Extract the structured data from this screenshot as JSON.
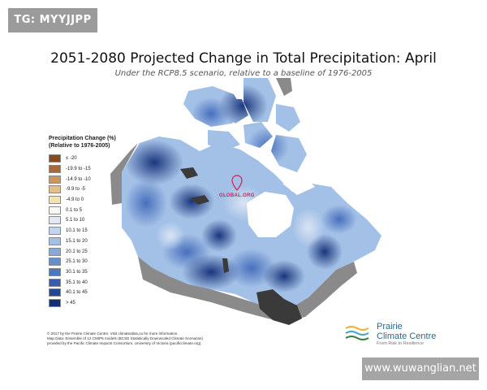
{
  "watermarks": {
    "top_left": "TG: MYYJJPP",
    "bottom_right": "www.wuwanglian.net",
    "map_stamp": "GLOBAL.ORG"
  },
  "map": {
    "title": "2051-2080 Projected Change in Total Precipitation: April",
    "subtitle": "Under the RCP8.5 scenario, relative to a baseline of 1976-2005"
  },
  "legend": {
    "title_line1": "Precipitation Change (%)",
    "title_line2": "(Relative to 1976-2005)",
    "items": [
      {
        "label": "≤ -20",
        "color": "#8a4a1c"
      },
      {
        "label": "-19.9 to -15",
        "color": "#a8693a"
      },
      {
        "label": "-14.9 to -10",
        "color": "#c99660"
      },
      {
        "label": "-9.9 to -5",
        "color": "#e2c185"
      },
      {
        "label": "-4.9 to 0",
        "color": "#f3e2b2"
      },
      {
        "label": "0.1 to 5",
        "color": "#f6f6f3"
      },
      {
        "label": "5.1 to 10",
        "color": "#e1e9f4"
      },
      {
        "label": "10.1 to 15",
        "color": "#c2d5ee"
      },
      {
        "label": "15.1 to 20",
        "color": "#a3c0e6"
      },
      {
        "label": "20.1 to 25",
        "color": "#84a9dd"
      },
      {
        "label": "25.1 to 30",
        "color": "#6590d0"
      },
      {
        "label": "30.1 to 35",
        "color": "#4a76c2"
      },
      {
        "label": "35.1 to 40",
        "color": "#345eb0"
      },
      {
        "label": "40.1 to 45",
        "color": "#234698"
      },
      {
        "label": "> 45",
        "color": "#132f78"
      }
    ]
  },
  "credits": {
    "line1": "© 2017 by the Prairie Climate Centre. Visit climateatlas.ca for more information.",
    "line2": "Map Data: Ensemble of 12 CMIP5 models (BCSD Statistically Downscaled Climate Scenarios)",
    "line3": "provided by the Pacific Climate Impacts Consortium, University of Victoria (pacificclimate.org)."
  },
  "logo": {
    "line1": "Prairie",
    "line2": "Climate Centre",
    "tagline": "From Risk to Resilience"
  },
  "colors": {
    "land_light": "#a3c0e6",
    "land_dark": "#132f78",
    "water_ice": "#ffffff",
    "lakes": "#3a3a3a",
    "neighbors": "#7b7b7b"
  }
}
